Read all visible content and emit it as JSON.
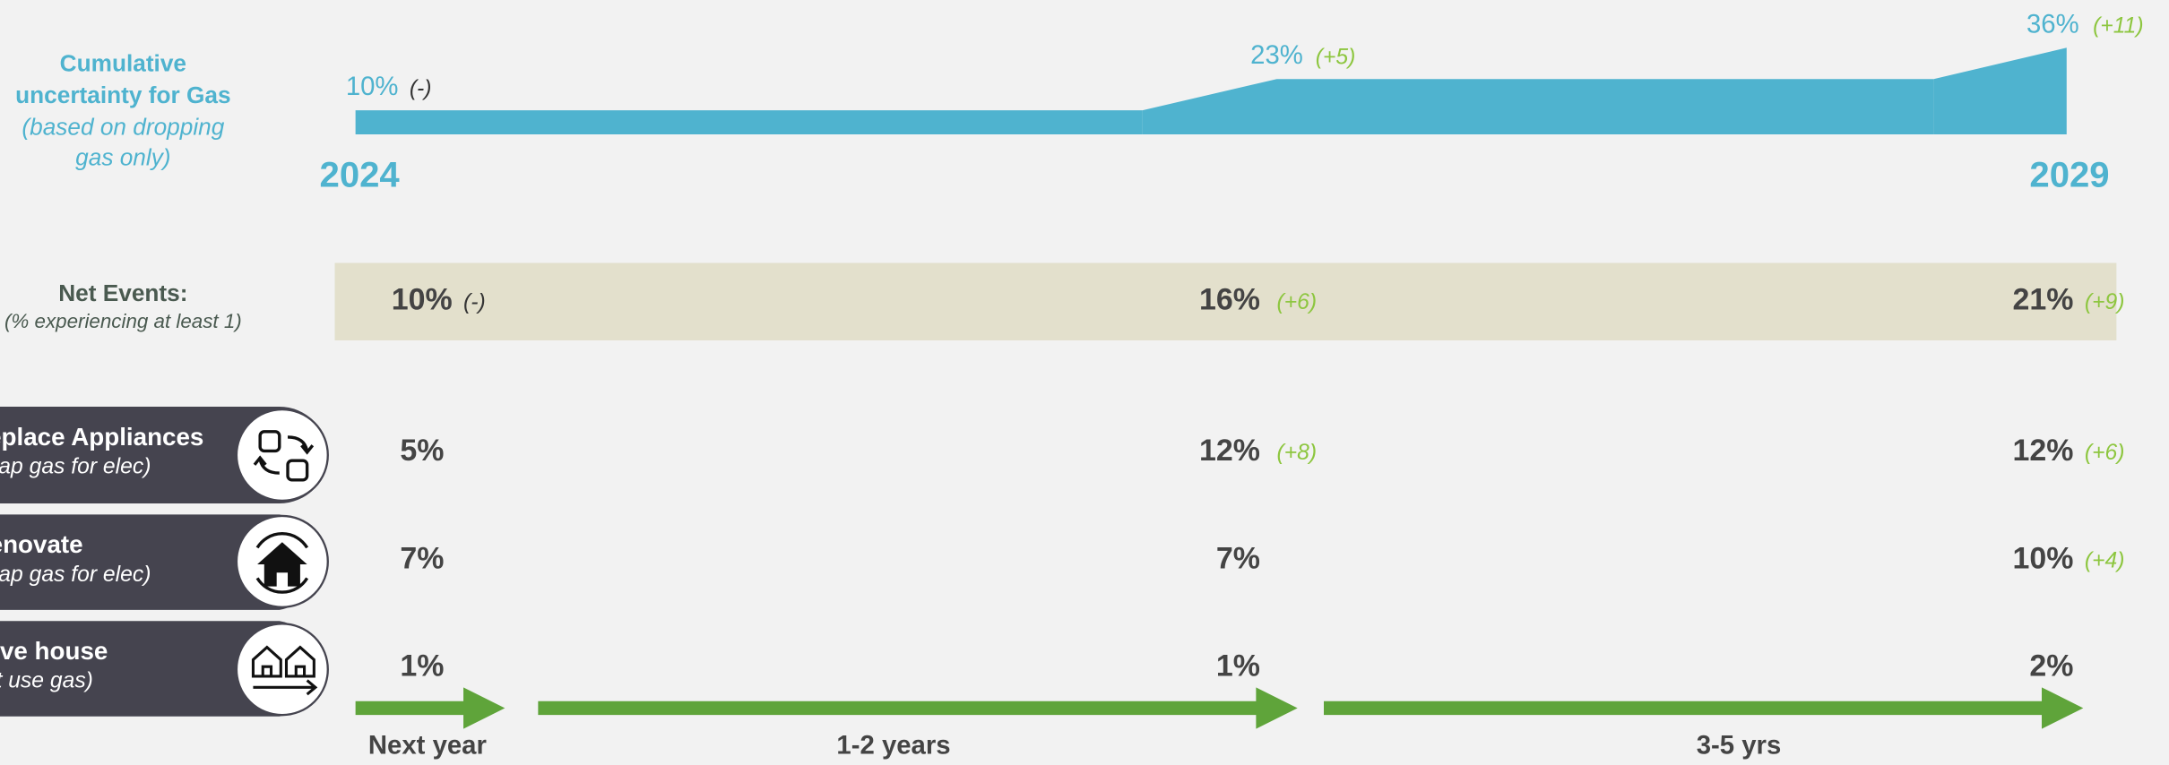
{
  "gas": {
    "title": [
      "Cumulative",
      "uncertainty for Gas"
    ],
    "subtitle": [
      "(based on dropping",
      "gas only)"
    ],
    "values": [
      10,
      23,
      36
    ],
    "value_labels": [
      "10%",
      "23%",
      "36%"
    ],
    "changes": [
      "(-)",
      "(+5)",
      "(+11)"
    ],
    "start_year": "2024",
    "end_year": "2029"
  },
  "net_events": {
    "title": "Net Events:",
    "subtitle": "(% experiencing at least 1)",
    "cells": [
      {
        "value": 10,
        "label": "10%",
        "change": "(-)"
      },
      {
        "value": 16,
        "label": "16%",
        "change": "(+6)"
      },
      {
        "value": 21,
        "label": "21%",
        "change": "(+9)"
      }
    ]
  },
  "rows": [
    {
      "title": "Replace Appliances",
      "subtitle": "(swap gas for elec)",
      "cells": [
        {
          "value": 5,
          "label": "5%"
        },
        {
          "value": 12,
          "label": "12%",
          "change": "(+8)"
        },
        {
          "value": 12,
          "label": "12%",
          "change": "(+6)"
        }
      ]
    },
    {
      "title": "Renovate",
      "subtitle": "(swap gas for elec)",
      "cells": [
        {
          "value": 7,
          "label": "7%"
        },
        {
          "value": 7,
          "label": "7%"
        },
        {
          "value": 10,
          "label": "10%",
          "change": "(+4)"
        }
      ]
    },
    {
      "title": "Move house",
      "subtitle": "(don't use gas)",
      "cells": [
        {
          "value": 1,
          "label": "1%"
        },
        {
          "value": 1,
          "label": "1%"
        },
        {
          "value": 2,
          "label": "2%"
        }
      ]
    }
  ],
  "timeline": [
    "Next year",
    "1-2 years",
    "3-5 yrs"
  ]
}
